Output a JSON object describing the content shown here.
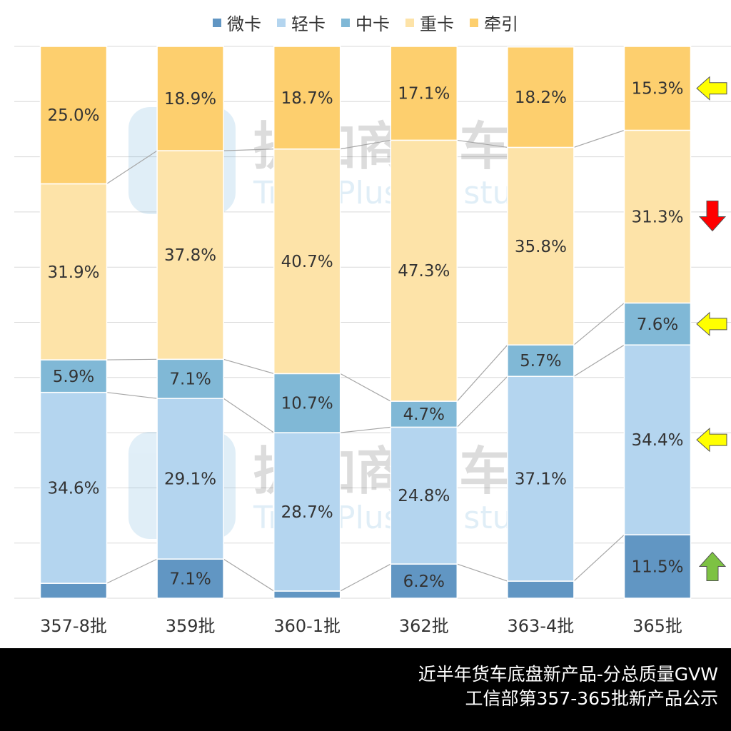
{
  "chart_data": {
    "type": "bar",
    "stacked": "100%",
    "categories": [
      "357-8批",
      "359批",
      "360-1批",
      "362批",
      "363-4批",
      "365批"
    ],
    "series": [
      {
        "name": "微卡",
        "color": "#6196c3",
        "values": [
          2.7,
          7.1,
          1.3,
          6.2,
          3.1,
          11.5
        ]
      },
      {
        "name": "轻卡",
        "color": "#b4d5ef",
        "values": [
          34.6,
          29.1,
          28.7,
          24.8,
          37.1,
          34.4
        ]
      },
      {
        "name": "中卡",
        "color": "#80b8d6",
        "values": [
          5.9,
          7.1,
          10.7,
          4.7,
          5.7,
          7.6
        ]
      },
      {
        "name": "重卡",
        "color": "#fde3a8",
        "values": [
          31.9,
          37.8,
          40.7,
          47.3,
          35.8,
          31.3
        ]
      },
      {
        "name": "牵引",
        "color": "#fdcf6e",
        "values": [
          25.0,
          18.9,
          18.7,
          17.1,
          18.2,
          15.3
        ]
      }
    ],
    "ylim": [
      0,
      100
    ],
    "grid": true,
    "legend": "top",
    "annotations": [
      {
        "series": "牵引",
        "category": "365批",
        "marker": "yellow-left-arrow"
      },
      {
        "series": "重卡",
        "category": "365批",
        "marker": "red-down-arrow"
      },
      {
        "series": "中卡",
        "category": "365批",
        "marker": "yellow-left-arrow"
      },
      {
        "series": "轻卡",
        "category": "365批",
        "marker": "yellow-left-arrow"
      },
      {
        "series": "微卡",
        "category": "365批",
        "marker": "green-up-arrow"
      }
    ]
  },
  "watermark": {
    "cn": "提加商用车",
    "en": "TruckPlus CV studio"
  },
  "footer": {
    "line1": "近半年货车底盘新产品-分总质量GVW",
    "line2": "工信部第357-365批新产品公示"
  }
}
